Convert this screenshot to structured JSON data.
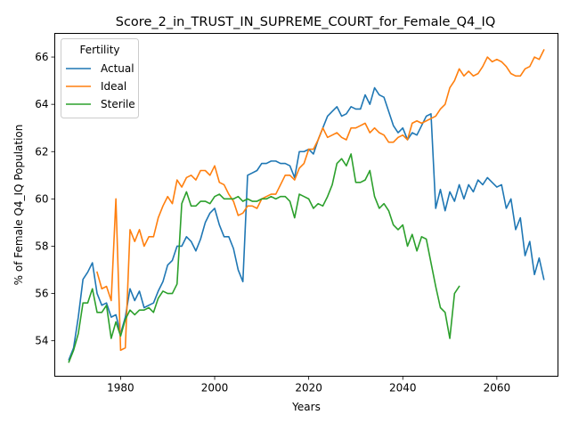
{
  "chart_data": {
    "type": "line",
    "title": "Score_2_in_TRUST_IN_SUPREME_COURT_for_Female_Q4_IQ",
    "xlabel": "Years",
    "ylabel": "% of Female Q4_IQ Population",
    "xlim": [
      1966,
      2073
    ],
    "ylim": [
      52.5,
      67.0
    ],
    "x_ticks": [
      1980,
      2000,
      2020,
      2040,
      2060
    ],
    "y_ticks": [
      54,
      56,
      58,
      60,
      62,
      64,
      66
    ],
    "grid": false,
    "legend": {
      "title": "Fertility",
      "placement": "top-left"
    },
    "series": [
      {
        "name": "Actual",
        "color": "#1f77b4",
        "points": [
          [
            1969,
            53.2
          ],
          [
            1970,
            53.7
          ],
          [
            1971,
            55.0
          ],
          [
            1972,
            56.6
          ],
          [
            1973,
            56.9
          ],
          [
            1974,
            57.3
          ],
          [
            1975,
            56.0
          ],
          [
            1976,
            55.5
          ],
          [
            1977,
            55.6
          ],
          [
            1978,
            55.0
          ],
          [
            1979,
            55.1
          ],
          [
            1980,
            54.3
          ],
          [
            1981,
            55.0
          ],
          [
            1982,
            56.2
          ],
          [
            1983,
            55.7
          ],
          [
            1984,
            56.1
          ],
          [
            1985,
            55.4
          ],
          [
            1986,
            55.5
          ],
          [
            1987,
            55.6
          ],
          [
            1988,
            56.1
          ],
          [
            1989,
            56.5
          ],
          [
            1990,
            57.2
          ],
          [
            1991,
            57.4
          ],
          [
            1992,
            58.0
          ],
          [
            1993,
            58.0
          ],
          [
            1994,
            58.4
          ],
          [
            1995,
            58.2
          ],
          [
            1996,
            57.8
          ],
          [
            1997,
            58.3
          ],
          [
            1998,
            59.0
          ],
          [
            1999,
            59.4
          ],
          [
            2000,
            59.6
          ],
          [
            2001,
            58.9
          ],
          [
            2002,
            58.4
          ],
          [
            2003,
            58.4
          ],
          [
            2004,
            57.9
          ],
          [
            2005,
            57.0
          ],
          [
            2006,
            56.5
          ],
          [
            2007,
            61.0
          ],
          [
            2008,
            61.1
          ],
          [
            2009,
            61.2
          ],
          [
            2010,
            61.5
          ],
          [
            2011,
            61.5
          ],
          [
            2012,
            61.6
          ],
          [
            2013,
            61.6
          ],
          [
            2014,
            61.5
          ],
          [
            2015,
            61.5
          ],
          [
            2016,
            61.4
          ],
          [
            2017,
            60.9
          ],
          [
            2018,
            62.0
          ],
          [
            2019,
            62.0
          ],
          [
            2020,
            62.1
          ],
          [
            2021,
            61.9
          ],
          [
            2022,
            62.5
          ],
          [
            2023,
            63.0
          ],
          [
            2024,
            63.5
          ],
          [
            2025,
            63.7
          ],
          [
            2026,
            63.9
          ],
          [
            2027,
            63.5
          ],
          [
            2028,
            63.6
          ],
          [
            2029,
            63.9
          ],
          [
            2030,
            63.8
          ],
          [
            2031,
            63.8
          ],
          [
            2032,
            64.4
          ],
          [
            2033,
            64.0
          ],
          [
            2034,
            64.7
          ],
          [
            2035,
            64.4
          ],
          [
            2036,
            64.3
          ],
          [
            2037,
            63.7
          ],
          [
            2038,
            63.1
          ],
          [
            2039,
            62.8
          ],
          [
            2040,
            63.0
          ],
          [
            2041,
            62.5
          ],
          [
            2042,
            62.8
          ],
          [
            2043,
            62.7
          ],
          [
            2044,
            63.1
          ],
          [
            2045,
            63.5
          ],
          [
            2046,
            63.6
          ],
          [
            2047,
            59.6
          ],
          [
            2048,
            60.4
          ],
          [
            2049,
            59.5
          ],
          [
            2050,
            60.3
          ],
          [
            2051,
            59.9
          ],
          [
            2052,
            60.6
          ],
          [
            2053,
            60.0
          ],
          [
            2054,
            60.6
          ],
          [
            2055,
            60.3
          ],
          [
            2056,
            60.8
          ],
          [
            2057,
            60.6
          ],
          [
            2058,
            60.9
          ],
          [
            2059,
            60.7
          ],
          [
            2060,
            60.5
          ],
          [
            2061,
            60.6
          ],
          [
            2062,
            59.6
          ],
          [
            2063,
            60.0
          ],
          [
            2064,
            58.7
          ],
          [
            2065,
            59.2
          ],
          [
            2066,
            57.6
          ],
          [
            2067,
            58.2
          ],
          [
            2068,
            56.8
          ],
          [
            2069,
            57.5
          ],
          [
            2070,
            56.6
          ]
        ]
      },
      {
        "name": "Ideal",
        "color": "#ff7f0e",
        "points": [
          [
            1975,
            56.9
          ],
          [
            1976,
            56.2
          ],
          [
            1977,
            56.3
          ],
          [
            1978,
            55.7
          ],
          [
            1979,
            60.0
          ],
          [
            1980,
            53.6
          ],
          [
            1981,
            53.7
          ],
          [
            1982,
            58.7
          ],
          [
            1983,
            58.2
          ],
          [
            1984,
            58.7
          ],
          [
            1985,
            58.0
          ],
          [
            1986,
            58.4
          ],
          [
            1987,
            58.4
          ],
          [
            1988,
            59.2
          ],
          [
            1989,
            59.7
          ],
          [
            1990,
            60.1
          ],
          [
            1991,
            59.8
          ],
          [
            1992,
            60.8
          ],
          [
            1993,
            60.5
          ],
          [
            1994,
            60.9
          ],
          [
            1995,
            61.0
          ],
          [
            1996,
            60.8
          ],
          [
            1997,
            61.2
          ],
          [
            1998,
            61.2
          ],
          [
            1999,
            61.0
          ],
          [
            2000,
            61.4
          ],
          [
            2001,
            60.7
          ],
          [
            2002,
            60.6
          ],
          [
            2003,
            60.2
          ],
          [
            2004,
            59.9
          ],
          [
            2005,
            59.3
          ],
          [
            2006,
            59.4
          ],
          [
            2007,
            59.7
          ],
          [
            2008,
            59.7
          ],
          [
            2009,
            59.6
          ],
          [
            2010,
            60.0
          ],
          [
            2011,
            60.1
          ],
          [
            2012,
            60.2
          ],
          [
            2013,
            60.2
          ],
          [
            2014,
            60.6
          ],
          [
            2015,
            61.0
          ],
          [
            2016,
            61.0
          ],
          [
            2017,
            60.8
          ],
          [
            2018,
            61.3
          ],
          [
            2019,
            61.5
          ],
          [
            2020,
            62.1
          ],
          [
            2021,
            62.1
          ],
          [
            2022,
            62.5
          ],
          [
            2023,
            63.0
          ],
          [
            2024,
            62.6
          ],
          [
            2025,
            62.7
          ],
          [
            2026,
            62.8
          ],
          [
            2027,
            62.6
          ],
          [
            2028,
            62.5
          ],
          [
            2029,
            63.0
          ],
          [
            2030,
            63.0
          ],
          [
            2031,
            63.1
          ],
          [
            2032,
            63.2
          ],
          [
            2033,
            62.8
          ],
          [
            2034,
            63.0
          ],
          [
            2035,
            62.8
          ],
          [
            2036,
            62.7
          ],
          [
            2037,
            62.4
          ],
          [
            2038,
            62.4
          ],
          [
            2039,
            62.6
          ],
          [
            2040,
            62.7
          ],
          [
            2041,
            62.5
          ],
          [
            2042,
            63.2
          ],
          [
            2043,
            63.3
          ],
          [
            2044,
            63.2
          ],
          [
            2045,
            63.3
          ],
          [
            2046,
            63.4
          ],
          [
            2047,
            63.5
          ],
          [
            2048,
            63.8
          ],
          [
            2049,
            64.0
          ],
          [
            2050,
            64.7
          ],
          [
            2051,
            65.0
          ],
          [
            2052,
            65.5
          ],
          [
            2053,
            65.2
          ],
          [
            2054,
            65.4
          ],
          [
            2055,
            65.2
          ],
          [
            2056,
            65.3
          ],
          [
            2057,
            65.6
          ],
          [
            2058,
            66.0
          ],
          [
            2059,
            65.8
          ],
          [
            2060,
            65.9
          ],
          [
            2061,
            65.8
          ],
          [
            2062,
            65.6
          ],
          [
            2063,
            65.3
          ],
          [
            2064,
            65.2
          ],
          [
            2065,
            65.2
          ],
          [
            2066,
            65.5
          ],
          [
            2067,
            65.6
          ],
          [
            2068,
            66.0
          ],
          [
            2069,
            65.9
          ],
          [
            2070,
            66.3
          ]
        ]
      },
      {
        "name": "Sterile",
        "color": "#2ca02c",
        "points": [
          [
            1969,
            53.1
          ],
          [
            1970,
            53.6
          ],
          [
            1971,
            54.3
          ],
          [
            1972,
            55.6
          ],
          [
            1973,
            55.6
          ],
          [
            1974,
            56.2
          ],
          [
            1975,
            55.2
          ],
          [
            1976,
            55.2
          ],
          [
            1977,
            55.5
          ],
          [
            1978,
            54.1
          ],
          [
            1979,
            54.8
          ],
          [
            1980,
            54.2
          ],
          [
            1981,
            54.9
          ],
          [
            1982,
            55.3
          ],
          [
            1983,
            55.1
          ],
          [
            1984,
            55.3
          ],
          [
            1985,
            55.3
          ],
          [
            1986,
            55.4
          ],
          [
            1987,
            55.2
          ],
          [
            1988,
            55.8
          ],
          [
            1989,
            56.1
          ],
          [
            1990,
            56.0
          ],
          [
            1991,
            56.0
          ],
          [
            1992,
            56.4
          ],
          [
            1993,
            59.8
          ],
          [
            1994,
            60.3
          ],
          [
            1995,
            59.7
          ],
          [
            1996,
            59.7
          ],
          [
            1997,
            59.9
          ],
          [
            1998,
            59.9
          ],
          [
            1999,
            59.8
          ],
          [
            2000,
            60.1
          ],
          [
            2001,
            60.2
          ],
          [
            2002,
            60.0
          ],
          [
            2003,
            60.0
          ],
          [
            2004,
            60.0
          ],
          [
            2005,
            60.1
          ],
          [
            2006,
            59.9
          ],
          [
            2007,
            60.0
          ],
          [
            2008,
            59.9
          ],
          [
            2009,
            59.9
          ],
          [
            2010,
            60.0
          ],
          [
            2011,
            60.0
          ],
          [
            2012,
            60.1
          ],
          [
            2013,
            60.0
          ],
          [
            2014,
            60.1
          ],
          [
            2015,
            60.1
          ],
          [
            2016,
            59.9
          ],
          [
            2017,
            59.2
          ],
          [
            2018,
            60.2
          ],
          [
            2019,
            60.1
          ],
          [
            2020,
            60.0
          ],
          [
            2021,
            59.6
          ],
          [
            2022,
            59.8
          ],
          [
            2023,
            59.7
          ],
          [
            2024,
            60.1
          ],
          [
            2025,
            60.6
          ],
          [
            2026,
            61.5
          ],
          [
            2027,
            61.7
          ],
          [
            2028,
            61.4
          ],
          [
            2029,
            61.9
          ],
          [
            2030,
            60.7
          ],
          [
            2031,
            60.7
          ],
          [
            2032,
            60.8
          ],
          [
            2033,
            61.2
          ],
          [
            2034,
            60.1
          ],
          [
            2035,
            59.6
          ],
          [
            2036,
            59.8
          ],
          [
            2037,
            59.5
          ],
          [
            2038,
            58.9
          ],
          [
            2039,
            58.7
          ],
          [
            2040,
            58.9
          ],
          [
            2041,
            58.0
          ],
          [
            2042,
            58.5
          ],
          [
            2043,
            57.8
          ],
          [
            2044,
            58.4
          ],
          [
            2045,
            58.3
          ],
          [
            2046,
            57.3
          ],
          [
            2047,
            56.3
          ],
          [
            2048,
            55.4
          ],
          [
            2049,
            55.2
          ],
          [
            2050,
            54.1
          ],
          [
            2051,
            56.0
          ],
          [
            2052,
            56.3
          ]
        ]
      }
    ]
  }
}
